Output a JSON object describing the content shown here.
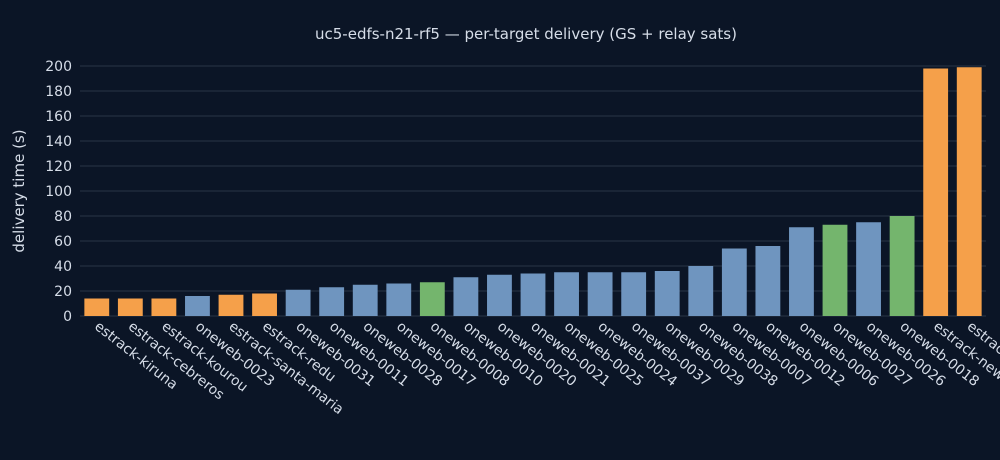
{
  "chart_data": {
    "type": "bar",
    "title": "uc5-edfs-n21-rf5 — per-target delivery (GS + relay sats)",
    "xlabel": "",
    "ylabel": "delivery time (s)",
    "ylim": [
      0,
      200
    ],
    "yticks": [
      0,
      20,
      40,
      60,
      80,
      100,
      120,
      140,
      160,
      180,
      200
    ],
    "grid": true,
    "legend": "none",
    "colors": {
      "background": "#0b1526",
      "grid": "#2a3547",
      "ground_station": "#f5a04a",
      "relay_sat_blue": "#6f95bf",
      "relay_sat_green": "#74b56d",
      "text": "#d6dde8"
    },
    "categories": [
      "estrack-kiruna",
      "estrack-cebreros",
      "estrack-kourou",
      "oneweb-0023",
      "estrack-santa-maria",
      "estrack-redu",
      "oneweb-0031",
      "oneweb-0011",
      "oneweb-0028",
      "oneweb-0017",
      "oneweb-0008",
      "oneweb-0010",
      "oneweb-0020",
      "oneweb-0021",
      "oneweb-0025",
      "oneweb-0024",
      "oneweb-0037",
      "oneweb-0029",
      "oneweb-0038",
      "oneweb-0007",
      "oneweb-0012",
      "oneweb-0006",
      "oneweb-0027",
      "oneweb-0026",
      "oneweb-0018",
      "estrack-new-norcia",
      "estrack-malargue"
    ],
    "values": [
      14,
      14,
      14,
      16,
      17,
      18,
      21,
      23,
      25,
      26,
      27,
      31,
      33,
      34,
      35,
      35,
      35,
      36,
      40,
      54,
      56,
      71,
      73,
      75,
      80,
      198,
      199
    ],
    "bar_color_keys": [
      "ground_station",
      "ground_station",
      "ground_station",
      "relay_sat_blue",
      "ground_station",
      "ground_station",
      "relay_sat_blue",
      "relay_sat_blue",
      "relay_sat_blue",
      "relay_sat_blue",
      "relay_sat_green",
      "relay_sat_blue",
      "relay_sat_blue",
      "relay_sat_blue",
      "relay_sat_blue",
      "relay_sat_blue",
      "relay_sat_blue",
      "relay_sat_blue",
      "relay_sat_blue",
      "relay_sat_blue",
      "relay_sat_blue",
      "relay_sat_blue",
      "relay_sat_green",
      "relay_sat_blue",
      "relay_sat_green",
      "ground_station",
      "ground_station"
    ]
  }
}
